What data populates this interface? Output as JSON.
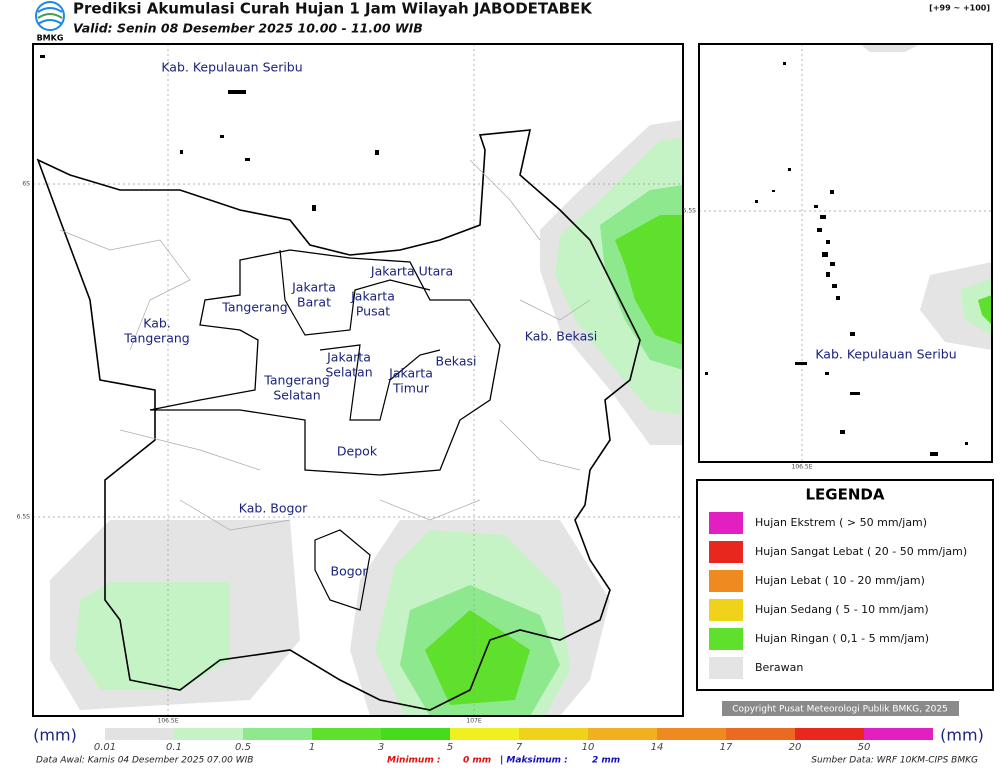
{
  "header": {
    "title": "Prediksi Akumulasi Curah Hujan 1 Jam Wilayah JABODETABEK",
    "valid": "Valid: Senin 08 Desember 2025 10.00 - 11.00 WIB",
    "logo": "BMKG",
    "range": "[+99 ~ +100]"
  },
  "map": {
    "regions": [
      [
        "Kab. Kepulauan Seribu"
      ],
      [
        "Jakarta Utara"
      ],
      [
        "Jakarta",
        "Barat"
      ],
      [
        "Jakarta",
        "Pusat"
      ],
      [
        "Tangerang"
      ],
      [
        "Kab.",
        "Tangerang"
      ],
      [
        "Kab. Bekasi"
      ],
      [
        "Bekasi"
      ],
      [
        "Jakarta",
        "Selatan"
      ],
      [
        "Jakarta",
        "Timur"
      ],
      [
        "Tangerang",
        "Selatan"
      ],
      [
        "Depok"
      ],
      [
        "Kab. Bogor"
      ],
      [
        "Bogor"
      ]
    ],
    "lat_labels": [
      "6S",
      "6.5S"
    ],
    "lon_labels": [
      "106.5E",
      "107E"
    ]
  },
  "inset": {
    "region": "Kab. Kepulauan Seribu",
    "lat_label": "5.5S",
    "lon_label": "106.5E"
  },
  "legend": {
    "title": "LEGENDA",
    "items": [
      "Hujan Ekstrem ( > 50 mm/jam)",
      "Hujan Sangat Lebat ( 20 - 50 mm/jam)",
      "Hujan Lebat ( 10 - 20 mm/jam)",
      "Hujan Sedang ( 5 - 10 mm/jam)",
      "Hujan Ringan ( 0,1 - 5 mm/jam)",
      "Berawan"
    ]
  },
  "copyright": "Copyright Pusat Meteorologi Publik BMKG, 2025",
  "colorbar": {
    "unit": "(mm)",
    "ticks": [
      "0.01",
      "0.1",
      "0.5",
      "1",
      "3",
      "5",
      "7",
      "10",
      "14",
      "17",
      "20",
      "50"
    ]
  },
  "footer": {
    "data_awal": "Data Awal: Kamis 04 Desember 2025 07.00 WIB",
    "min_label": "Minimum :",
    "min_value": "0 mm",
    "max_label": "| Maksimum :",
    "max_value": "2 mm",
    "source": "Sumber Data: WRF 10KM-CIPS BMKG"
  }
}
